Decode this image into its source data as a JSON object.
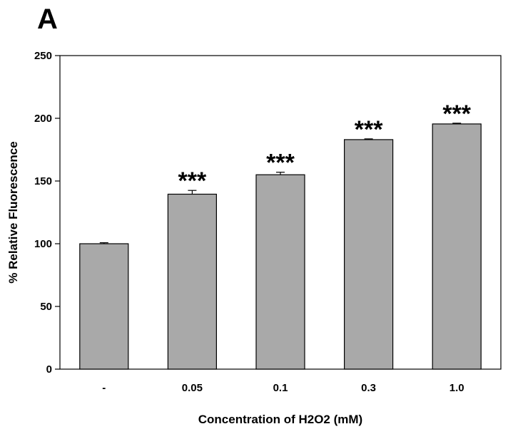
{
  "figure": {
    "panel_label": "A"
  },
  "chart_data": {
    "type": "bar",
    "categories": [
      "-",
      "0.05",
      "0.1",
      "0.3",
      "1.0"
    ],
    "values": [
      100,
      139.5,
      155,
      183,
      195.5
    ],
    "error": [
      0.8,
      3,
      2,
      0.6,
      0.6
    ],
    "significance": [
      "",
      "***",
      "***",
      "***",
      "***"
    ],
    "xlabel": "Concentration of H2O2 (mM)",
    "ylabel": "% Relative Fluorescence",
    "ylim": [
      0,
      250
    ],
    "yticks": [
      0,
      50,
      100,
      150,
      200,
      250
    ],
    "grid": false,
    "bar_color": "#a9a9a9",
    "edge_color": "#000000"
  }
}
